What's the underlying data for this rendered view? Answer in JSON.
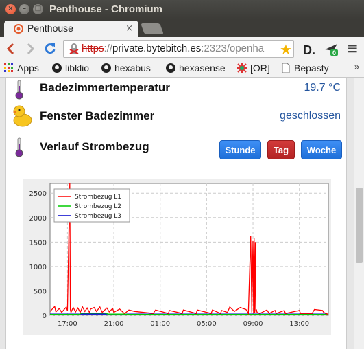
{
  "window": {
    "title": "Penthouse - Chromium"
  },
  "tab": {
    "title": "Penthouse",
    "close": "×"
  },
  "toolbar": {
    "url_scheme": "https",
    "url_sep": "://",
    "url_host": "private.bytebitch.es",
    "url_rest": ":2323/openha",
    "menu_glyph": "≡",
    "ext_badge": "0"
  },
  "bookmarks": [
    {
      "label": "Apps",
      "icon": "apps-grid-icon"
    },
    {
      "label": "libklio",
      "icon": "github-icon"
    },
    {
      "label": "hexabus",
      "icon": "github-icon"
    },
    {
      "label": "hexasense",
      "icon": "github-icon"
    },
    {
      "label": "[OR]",
      "icon": "or-icon"
    },
    {
      "label": "Bepasty",
      "icon": "page-icon"
    }
  ],
  "bookmarks_more": "»",
  "items": {
    "bath_temp": {
      "label": "Badezimmertemperatur",
      "value": "19.7 °C",
      "icon": "thermometer-icon"
    },
    "bath_window": {
      "label": "Fenster Badezimmer",
      "value": "geschlossen",
      "icon": "rubber-duck-icon"
    },
    "power": {
      "label": "Verlauf Strombezug",
      "icon": "thermometer-icon"
    }
  },
  "period_buttons": {
    "hour": "Stunde",
    "day": "Tag",
    "week": "Woche"
  },
  "colors": {
    "active_button": "#c62b2b",
    "button": "#2a7ae2",
    "value_text": "#24559e"
  },
  "chart_data": {
    "type": "line",
    "title": "",
    "xlabel": "",
    "ylabel": "",
    "ylim": [
      0,
      2700
    ],
    "yticks": [
      0,
      500,
      1000,
      1500,
      2000,
      2500
    ],
    "xticks": [
      "17:00",
      "21:00",
      "01:00",
      "05:00",
      "09:00",
      "13:00"
    ],
    "xrange_hours": [
      15.5,
      39.5
    ],
    "grid": true,
    "legend_position": "top-left",
    "series": [
      {
        "name": "Strombezug L1",
        "color": "#ff0000",
        "x": [
          15.5,
          15.9,
          16.0,
          16.3,
          16.5,
          16.9,
          17.0,
          17.2,
          17.25,
          17.3,
          17.5,
          17.7,
          17.9,
          18.1,
          18.3,
          18.5,
          18.7,
          18.9,
          19.0,
          19.3,
          19.5,
          19.8,
          20.0,
          20.4,
          20.6,
          20.9,
          21.0,
          21.5,
          21.9,
          22.0,
          22.3,
          22.8,
          24.4,
          24.6,
          25.7,
          25.8,
          26.9,
          27.0,
          28.1,
          28.2,
          29.4,
          29.5,
          30.2,
          30.3,
          30.8,
          31.0,
          31.4,
          31.9,
          32.4,
          32.6,
          32.8,
          32.9,
          33.0,
          33.05,
          33.1,
          33.15,
          33.2,
          33.25,
          33.3,
          33.35,
          33.6,
          34.2,
          34.4,
          34.9,
          35.0,
          35.7,
          35.8,
          37.0,
          37.1,
          38.1,
          38.3,
          39.0,
          39.1,
          39.5
        ],
        "y": [
          80,
          180,
          70,
          140,
          60,
          170,
          90,
          2700,
          120,
          60,
          160,
          70,
          150,
          60,
          170,
          80,
          150,
          60,
          130,
          160,
          80,
          170,
          60,
          150,
          70,
          140,
          60,
          130,
          40,
          50,
          110,
          80,
          40,
          110,
          40,
          100,
          40,
          110,
          40,
          110,
          40,
          110,
          40,
          100,
          60,
          170,
          80,
          160,
          120,
          40,
          1620,
          60,
          1520,
          40,
          1580,
          50,
          1500,
          80,
          120,
          60,
          40,
          110,
          40,
          100,
          40,
          100,
          40,
          100,
          40,
          40,
          120,
          100,
          60,
          20
        ]
      },
      {
        "name": "Strombezug L2",
        "color": "#00cc00",
        "x": [
          15.5,
          18.0,
          18.2,
          20.3,
          20.5,
          22.0,
          22.2,
          39.5
        ],
        "y": [
          20,
          20,
          45,
          45,
          25,
          25,
          20,
          20
        ]
      },
      {
        "name": "Strombezug L3",
        "color": "#0000cc",
        "x": [
          15.5,
          39.5
        ],
        "y": [
          25,
          25
        ]
      }
    ]
  }
}
